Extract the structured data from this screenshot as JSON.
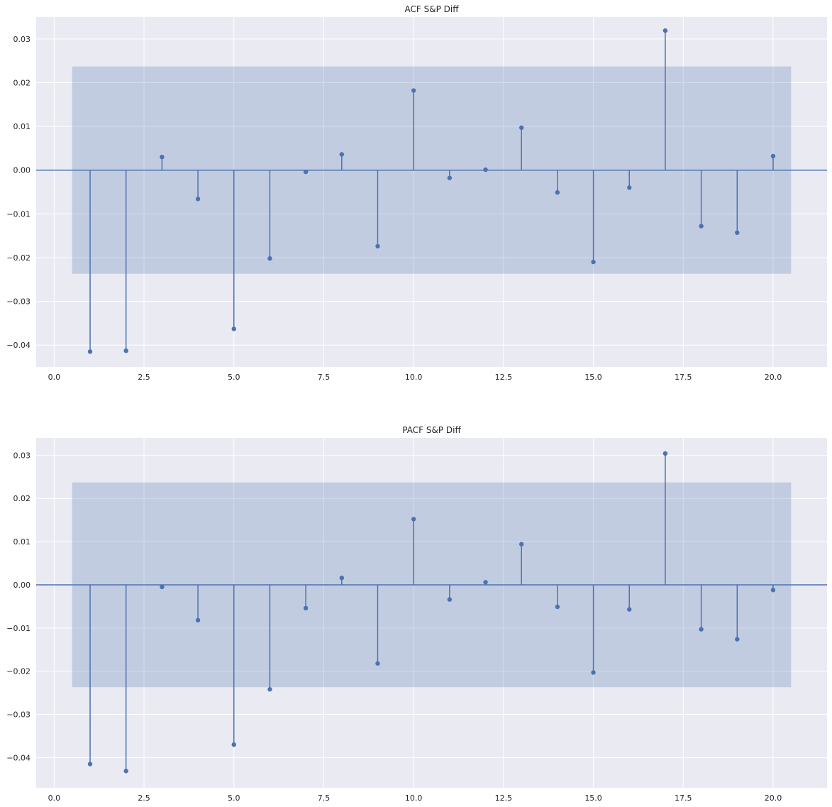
{
  "chart_data": [
    {
      "type": "stem",
      "title": "ACF S&P Diff",
      "xlabel": "",
      "ylabel": "",
      "xlim": [
        -0.5,
        21.5
      ],
      "ylim": [
        -0.045,
        0.035
      ],
      "xticks": [
        0.0,
        2.5,
        5.0,
        7.5,
        10.0,
        12.5,
        15.0,
        17.5,
        20.0
      ],
      "xtick_labels": [
        "0.0",
        "2.5",
        "5.0",
        "7.5",
        "10.0",
        "12.5",
        "15.0",
        "17.5",
        "20.0"
      ],
      "yticks": [
        0.03,
        0.02,
        0.01,
        0.0,
        -0.01,
        -0.02,
        -0.03,
        -0.04
      ],
      "ytick_labels": [
        "0.03",
        "0.02",
        "0.01",
        "0.00",
        "−0.01",
        "−0.02",
        "−0.03",
        "−0.04"
      ],
      "lags": [
        1,
        2,
        3,
        4,
        5,
        6,
        7,
        8,
        9,
        10,
        11,
        12,
        13,
        14,
        15,
        16,
        17,
        18,
        19,
        20
      ],
      "values": [
        -0.0415,
        -0.0413,
        0.003,
        -0.0066,
        -0.0363,
        -0.0202,
        -0.0004,
        0.0036,
        -0.0174,
        0.0182,
        -0.0018,
        0.0001,
        0.0097,
        -0.0051,
        -0.021,
        -0.004,
        0.0319,
        -0.0128,
        -0.0143,
        0.0032
      ],
      "confidence_band": {
        "x_range": [
          0.5,
          20.5
        ],
        "upper": 0.0237,
        "lower": -0.0237
      },
      "grid": true
    },
    {
      "type": "stem",
      "title": "PACF S&P Diff",
      "xlabel": "",
      "ylabel": "",
      "xlim": [
        -0.5,
        21.5
      ],
      "ylim": [
        -0.047,
        0.034
      ],
      "xticks": [
        0.0,
        2.5,
        5.0,
        7.5,
        10.0,
        12.5,
        15.0,
        17.5,
        20.0
      ],
      "xtick_labels": [
        "0.0",
        "2.5",
        "5.0",
        "7.5",
        "10.0",
        "12.5",
        "15.0",
        "17.5",
        "20.0"
      ],
      "yticks": [
        0.03,
        0.02,
        0.01,
        0.0,
        -0.01,
        -0.02,
        -0.03,
        -0.04
      ],
      "ytick_labels": [
        "0.03",
        "0.02",
        "0.01",
        "0.00",
        "−0.01",
        "−0.02",
        "−0.03",
        "−0.04"
      ],
      "lags": [
        1,
        2,
        3,
        4,
        5,
        6,
        7,
        8,
        9,
        10,
        11,
        12,
        13,
        14,
        15,
        16,
        17,
        18,
        19,
        20
      ],
      "values": [
        -0.0415,
        -0.0431,
        -0.0005,
        -0.0082,
        -0.037,
        -0.0242,
        -0.0054,
        0.0016,
        -0.0182,
        0.0152,
        -0.0034,
        0.0006,
        0.0094,
        -0.0051,
        -0.0203,
        -0.0057,
        0.0304,
        -0.0103,
        -0.0126,
        -0.0012
      ],
      "confidence_band": {
        "x_range": [
          0.5,
          20.5
        ],
        "upper": 0.0237,
        "lower": -0.0237
      },
      "grid": true
    }
  ],
  "colors": {
    "axes_background": "#eaeaf2",
    "grid": "#ffffff",
    "stem": "#4c72b0",
    "band": "#4c72b0",
    "text": "#262626"
  }
}
